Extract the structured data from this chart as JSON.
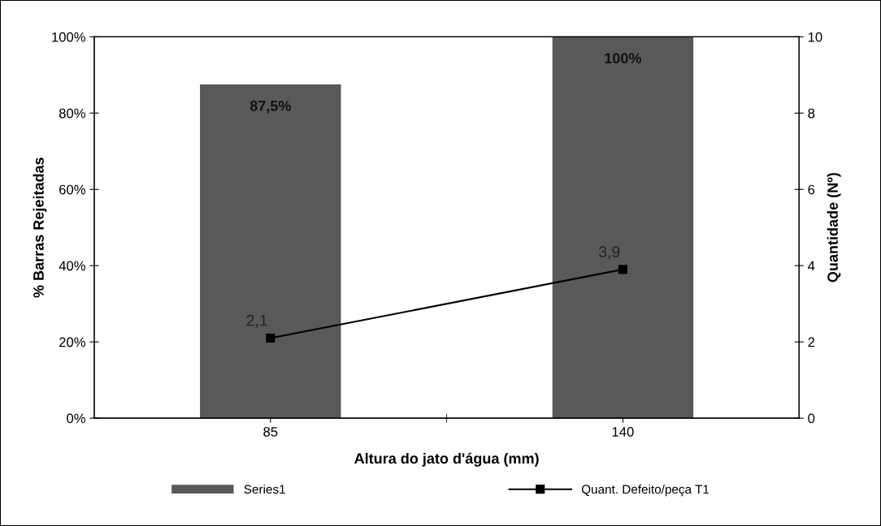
{
  "chart_data": {
    "type": "bar",
    "xlabel": "Altura do jato d'água (mm)",
    "ylabel": "% Barras Rejeitadas",
    "y2label": "Quantidade (Nº)",
    "categories": [
      "85",
      "140"
    ],
    "series": [
      {
        "name": "Series1",
        "color": "#595959",
        "values": [
          87.5,
          100
        ],
        "value_labels": [
          "87,5%",
          "100%"
        ]
      },
      {
        "name": "Quant. Defeito/peça T1",
        "type": "line",
        "axis": "y2",
        "color": "#000000",
        "values": [
          2.1,
          3.9
        ],
        "value_labels": [
          "2,1",
          "3,9"
        ],
        "marker": "square",
        "line_style": "solid"
      }
    ],
    "ylim": [
      0,
      100
    ],
    "yticks": [
      {
        "value": 0,
        "label": "0%"
      },
      {
        "value": 20,
        "label": "20%"
      },
      {
        "value": 40,
        "label": "40%"
      },
      {
        "value": 60,
        "label": "60%"
      },
      {
        "value": 80,
        "label": "80%"
      },
      {
        "value": 100,
        "label": "100%"
      }
    ],
    "y2lim": [
      0,
      10
    ],
    "y2ticks": [
      0,
      2,
      4,
      6,
      8,
      10
    ],
    "grid": false,
    "legend": "bottom"
  }
}
